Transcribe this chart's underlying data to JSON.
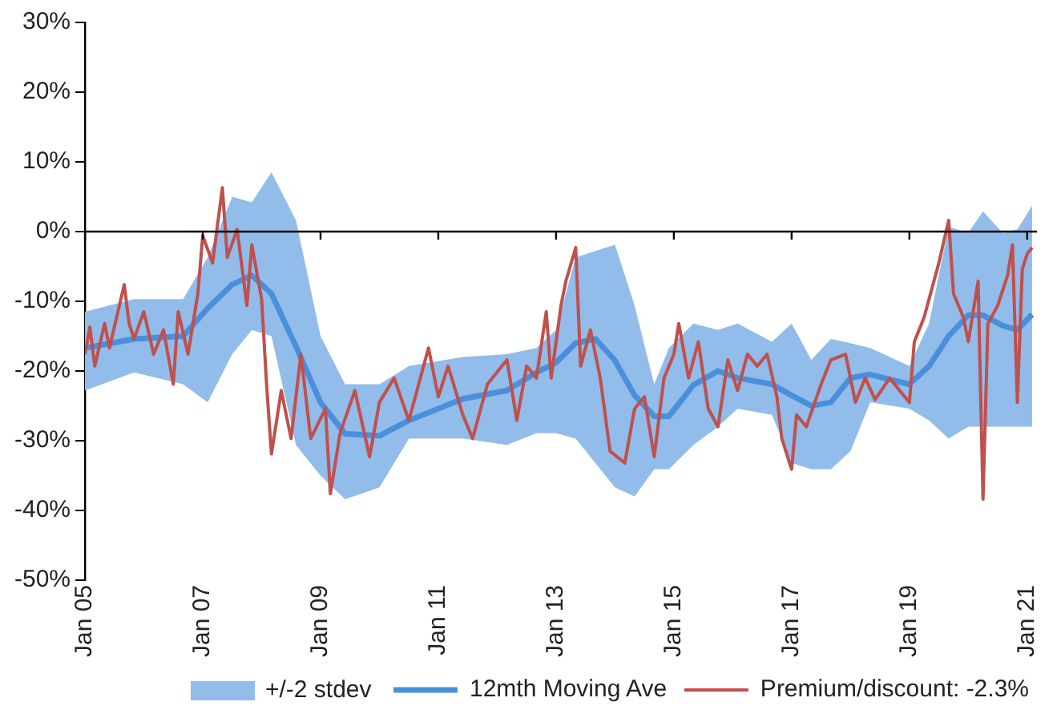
{
  "chart_data": {
    "type": "line",
    "xlim": [
      "2005-01",
      "2021-03"
    ],
    "xticks": [
      {
        "value": "2005-01",
        "label": "Jan 05"
      },
      {
        "value": "2007-01",
        "label": "Jan 07"
      },
      {
        "value": "2009-01",
        "label": "Jan 09"
      },
      {
        "value": "2011-01",
        "label": "Jan 11"
      },
      {
        "value": "2013-01",
        "label": "Jan 13"
      },
      {
        "value": "2015-01",
        "label": "Jan 15"
      },
      {
        "value": "2017-01",
        "label": "Jan 17"
      },
      {
        "value": "2019-01",
        "label": "Jan 19"
      },
      {
        "value": "2021-01",
        "label": "Jan 21"
      }
    ],
    "ylim": [
      -50,
      30
    ],
    "yticks": [
      {
        "value": -50,
        "label": "-50%"
      },
      {
        "value": -40,
        "label": "-40%"
      },
      {
        "value": -30,
        "label": "-30%"
      },
      {
        "value": -20,
        "label": "-20%"
      },
      {
        "value": -10,
        "label": "-10%"
      },
      {
        "value": 0,
        "label": "0%"
      },
      {
        "value": 10,
        "label": "10%"
      },
      {
        "value": 20,
        "label": "20%"
      },
      {
        "value": 30,
        "label": "30%"
      }
    ],
    "legend": "bottom",
    "annotations": [
      "+/-2 stdev"
    ],
    "ref_lines": [
      {
        "axis": "y",
        "value": 0,
        "color": "#000000"
      }
    ],
    "series": [
      {
        "name": "12mth Moving Ave",
        "color": "#4a8fdb",
        "x": [
          "2005-01",
          "2005-11",
          "2006-09",
          "2007-02",
          "2007-07",
          "2007-11",
          "2008-03",
          "2008-08",
          "2009-01",
          "2009-06",
          "2010-01",
          "2010-07",
          "2011-06",
          "2012-03",
          "2012-09",
          "2013-01",
          "2013-05",
          "2013-09",
          "2014-01",
          "2014-05",
          "2014-09",
          "2014-12",
          "2015-05",
          "2015-10",
          "2016-02",
          "2016-09",
          "2017-01",
          "2017-05",
          "2017-09",
          "2018-01",
          "2018-05",
          "2019-01",
          "2019-05",
          "2019-09",
          "2020-01",
          "2020-04",
          "2020-08",
          "2020-11",
          "2021-02"
        ],
        "values": [
          -16.7,
          -15.4,
          -15,
          -11,
          -7.6,
          -6.3,
          -8.9,
          -16.5,
          -24.5,
          -29,
          -29.3,
          -27.1,
          -24,
          -22.8,
          -20.2,
          -18.8,
          -16,
          -15.4,
          -18.5,
          -23.5,
          -26.5,
          -26.5,
          -22,
          -20,
          -21,
          -21.9,
          -23.5,
          -25,
          -24.5,
          -21,
          -20.5,
          -21.9,
          -19.3,
          -15,
          -12,
          -12,
          -13.5,
          -14.1,
          -11.9
        ],
        "upper": [
          -11.5,
          -9.7,
          -9.7,
          -3.7,
          5,
          4.2,
          8.5,
          1.6,
          -15,
          -21.9,
          -21.9,
          -19.3,
          -18,
          -17.6,
          -16.7,
          -14.1,
          -3.7,
          -2.8,
          -1.9,
          -10.6,
          -21.9,
          -16.7,
          -13.2,
          -14.1,
          -13.2,
          -15.8,
          -13.2,
          -18.4,
          -15.4,
          -16,
          -16.7,
          -19.3,
          -13.2,
          0.7,
          -0.2,
          2.9,
          -0.2,
          0.3,
          3.7
        ],
        "lower": [
          -22.8,
          -20.2,
          -21.9,
          -24.5,
          -17.6,
          -14.1,
          -15,
          -30.6,
          -35,
          -38.4,
          -36.7,
          -29.7,
          -29.7,
          -30.6,
          -28.9,
          -28.9,
          -29.7,
          -33.2,
          -36.7,
          -38,
          -34.1,
          -34.1,
          -30.6,
          -28,
          -25.4,
          -26.3,
          -33.2,
          -34.1,
          -34.1,
          -31.5,
          -24.5,
          -25.4,
          -27.1,
          -29.7,
          -28,
          -28,
          -28,
          -28,
          -28
        ]
      },
      {
        "name": "Premium/discount: -2.3%",
        "color": "#c0504d",
        "x": [
          "2005-01",
          "2005-02",
          "2005-03",
          "2005-05",
          "2005-06",
          "2005-09",
          "2005-10",
          "2005-11",
          "2006-01",
          "2006-03",
          "2006-05",
          "2006-07",
          "2006-08",
          "2006-10",
          "2006-12",
          "2007-01",
          "2007-03",
          "2007-05",
          "2007-06",
          "2007-08",
          "2007-10",
          "2007-11",
          "2008-01",
          "2008-02",
          "2008-03",
          "2008-05",
          "2008-07",
          "2008-09",
          "2008-11",
          "2009-02",
          "2009-03",
          "2009-05",
          "2009-08",
          "2009-11",
          "2010-01",
          "2010-04",
          "2010-07",
          "2010-11",
          "2011-01",
          "2011-03",
          "2011-06",
          "2011-08",
          "2011-11",
          "2012-03",
          "2012-05",
          "2012-07",
          "2012-09",
          "2012-11",
          "2012-12",
          "2013-02",
          "2013-03",
          "2013-05",
          "2013-06",
          "2013-08",
          "2013-10",
          "2013-12",
          "2014-03",
          "2014-05",
          "2014-07",
          "2014-09",
          "2014-11",
          "2015-01",
          "2015-02",
          "2015-04",
          "2015-06",
          "2015-08",
          "2015-10",
          "2015-12",
          "2016-02",
          "2016-04",
          "2016-06",
          "2016-08",
          "2016-10",
          "2016-11",
          "2017-01",
          "2017-02",
          "2017-04",
          "2017-07",
          "2017-09",
          "2017-12",
          "2018-02",
          "2018-04",
          "2018-06",
          "2018-09",
          "2018-11",
          "2019-01",
          "2019-02",
          "2019-04",
          "2019-05",
          "2019-07",
          "2019-09",
          "2019-10",
          "2019-12",
          "2020-01",
          "2020-03",
          "2020-04",
          "2020-05",
          "2020-07",
          "2020-09",
          "2020-10",
          "2020-11",
          "2020-12",
          "2021-01",
          "2021-02"
        ],
        "values": [
          -17.6,
          -13.7,
          -19.3,
          -13.2,
          -16.7,
          -7.6,
          -13.2,
          -15.4,
          -11.5,
          -17.6,
          -14.1,
          -21.9,
          -11.5,
          -17.6,
          -8.9,
          -0.6,
          -4.5,
          6.3,
          -3.7,
          0.3,
          -10.6,
          -1.9,
          -9.7,
          -21.9,
          -31.9,
          -22.8,
          -29.7,
          -17.6,
          -29.7,
          -25.4,
          -37.6,
          -28.9,
          -22.8,
          -32.3,
          -24.5,
          -21,
          -27.1,
          -16.7,
          -23.7,
          -19.3,
          -26.3,
          -29.7,
          -21.9,
          -18.4,
          -27.1,
          -19.3,
          -21,
          -11.5,
          -21,
          -10.6,
          -7.1,
          -2.3,
          -19.3,
          -14.1,
          -21,
          -31.5,
          -33.2,
          -25.4,
          -23.7,
          -32.3,
          -21,
          -17.6,
          -13.2,
          -21,
          -15.8,
          -25.4,
          -28,
          -18.4,
          -22.8,
          -17.6,
          -19.3,
          -17.6,
          -23.7,
          -29.7,
          -34.1,
          -26.3,
          -28,
          -21.9,
          -18.4,
          -17.6,
          -24.5,
          -21,
          -24.1,
          -21,
          -22.8,
          -24.5,
          -15.8,
          -12.3,
          -9.7,
          -4.5,
          1.6,
          -8.9,
          -12.3,
          -15.8,
          -7.1,
          -38.4,
          -13.2,
          -10.6,
          -6.3,
          -1.9,
          -24.5,
          -5.4,
          -3.2,
          -2.3
        ]
      }
    ]
  }
}
